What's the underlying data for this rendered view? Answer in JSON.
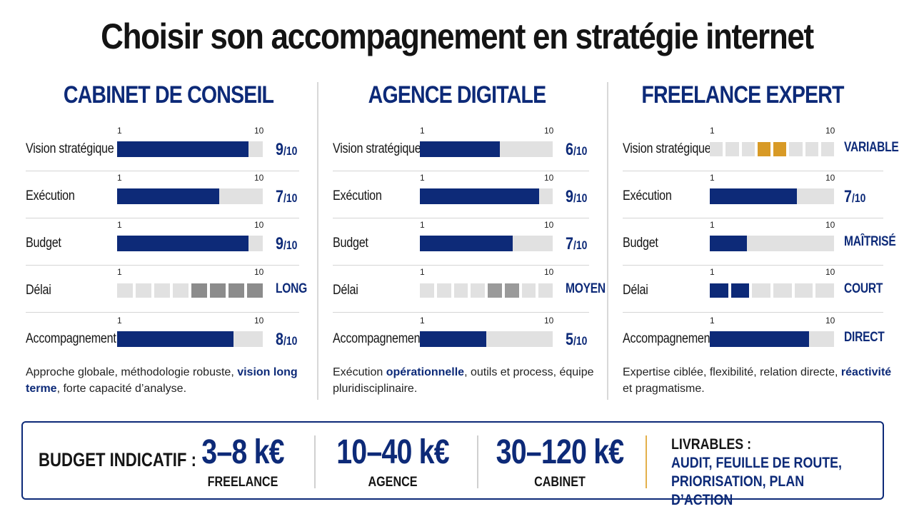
{
  "title": "Choisir son accompagnement en stratégie internet",
  "scale_min_label": "1",
  "scale_max_label": "10",
  "colors": {
    "navy": "#0d2a78",
    "gold": "#d89a26",
    "gray_dark": "#8c8c8c",
    "track": "#e1e1e1"
  },
  "columns": [
    {
      "title": "CABINET DE CONSEIL",
      "rows": [
        {
          "label": "Vision stratégique",
          "type": "bar",
          "score": 9,
          "score_text": "9",
          "denom": "/10"
        },
        {
          "label": "Exécution",
          "type": "bar",
          "score": 7,
          "score_text": "7",
          "denom": "/10"
        },
        {
          "label": "Budget",
          "type": "bar",
          "score": 9,
          "score_text": "9",
          "denom": "/10"
        },
        {
          "label": "Délai",
          "type": "segments",
          "segment_count": 8,
          "highlighted_segments": [
            5,
            6,
            7,
            8
          ],
          "segment_color": "#8c8c8c",
          "value_text": "LONG"
        },
        {
          "label": "Accompagnement",
          "type": "bar",
          "score": 8,
          "score_text": "8",
          "denom": "/10"
        }
      ],
      "description": {
        "part1": "Approche globale, méthodologie robuste, ",
        "highlight": "vision long terme",
        "part2": ", forte capacité d’analyse."
      }
    },
    {
      "title": "AGENCE DIGITALE",
      "rows": [
        {
          "label": "Vision stratégique",
          "type": "bar",
          "score": 6,
          "score_text": "6",
          "denom": "/10"
        },
        {
          "label": "Exécution",
          "type": "bar",
          "score": 9,
          "score_text": "9",
          "denom": "/10"
        },
        {
          "label": "Budget",
          "type": "bar",
          "score": 7,
          "score_text": "7",
          "denom": "/10"
        },
        {
          "label": "Délai",
          "type": "segments",
          "segment_count": 8,
          "highlighted_segments": [
            5,
            6
          ],
          "segment_color": "#9a9a9a",
          "value_text": "MOYEN"
        },
        {
          "label": "Accompagnement",
          "type": "bar",
          "score": 5,
          "score_text": "5",
          "denom": "/10"
        }
      ],
      "description": {
        "part1": "Exécution ",
        "highlight": "opérationnelle",
        "part2": ", outils et process, équipe pluridisciplinaire."
      }
    },
    {
      "title": "FREELANCE EXPERT",
      "rows": [
        {
          "label": "Vision stratégique",
          "type": "segments",
          "segment_count": 8,
          "highlighted_segments": [
            4,
            5
          ],
          "segment_color": "#d89a26",
          "value_text": "VARIABLE"
        },
        {
          "label": "Exécution",
          "type": "bar",
          "score": 7,
          "score_text": "7",
          "denom": "/10"
        },
        {
          "label": "Budget",
          "type": "bar",
          "score": 3,
          "value_text": "MAÎTRISÉ"
        },
        {
          "label": "Délai",
          "type": "segments",
          "segment_count": 6,
          "highlighted_segments": [
            1,
            2
          ],
          "segment_color": "#0d2a78",
          "value_text": "COURT"
        },
        {
          "label": "Accompagnement",
          "type": "bar",
          "score": 8,
          "value_text": "DIRECT"
        }
      ],
      "description": {
        "part1": "Expertise ciblée, flexibilité, relation directe, ",
        "highlight": "réactivité",
        "part2": " et pragmatisme."
      }
    }
  ],
  "budget": {
    "label": "BUDGET INDICATIF :",
    "items": [
      {
        "amount": "3–8 k€",
        "name": "FREELANCE"
      },
      {
        "amount": "10–40 k€",
        "name": "AGENCE"
      },
      {
        "amount": "30–120 k€",
        "name": "CABINET"
      }
    ],
    "deliverables_title": "LIVRABLES :",
    "deliverables_text": "AUDIT, FEUILLE DE ROUTE,\nPRIORISATION, PLAN D’ACTION"
  }
}
